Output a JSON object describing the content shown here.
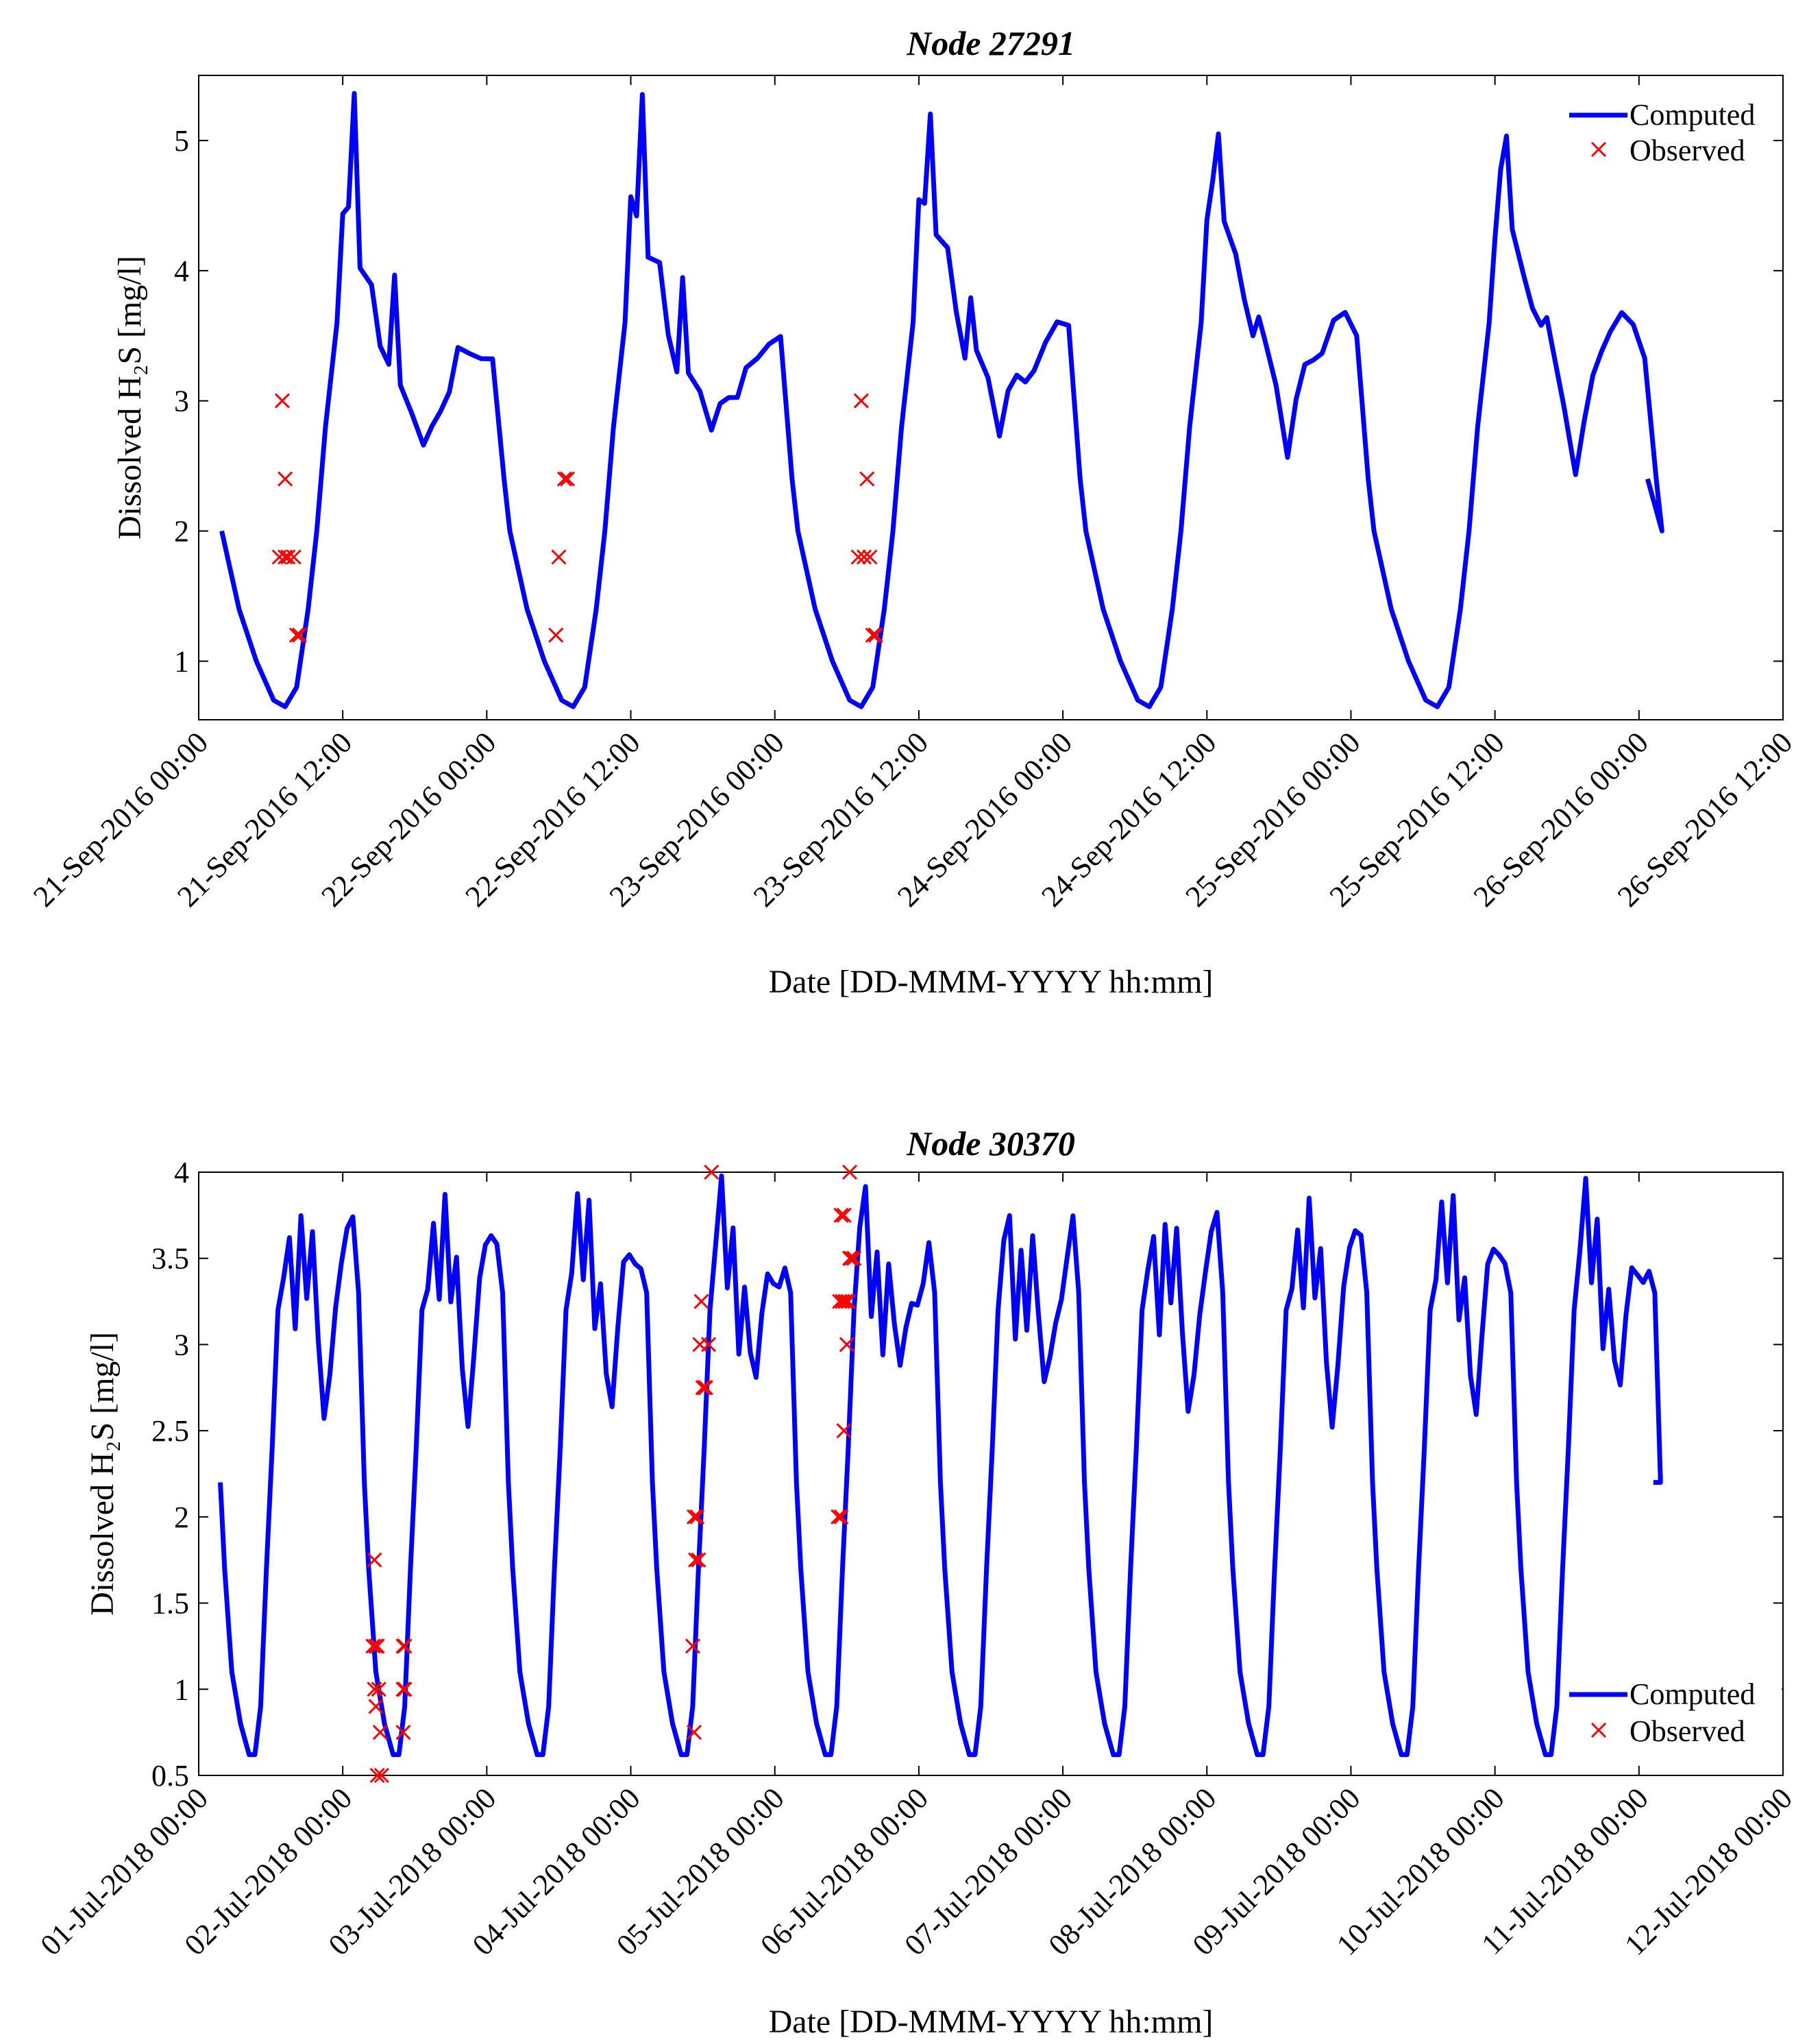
{
  "chart_data": [
    {
      "type": "line",
      "title": "Node 27291",
      "xlabel": "Date [DD-MMM-YYYY hh:mm]",
      "ylabel": "Dissolved H₂S [mg/l]",
      "ylim": [
        0.55,
        5.5
      ],
      "xlim_days": [
        0,
        5.5
      ],
      "yticks": [
        1,
        2,
        3,
        4,
        5
      ],
      "ytick_labels": [
        "1",
        "2",
        "3",
        "4",
        "5"
      ],
      "xtick_labels": [
        "21-Sep-2016 00:00",
        "21-Sep-2016 12:00",
        "22-Sep-2016 00:00",
        "22-Sep-2016 12:00",
        "23-Sep-2016 00:00",
        "23-Sep-2016 12:00",
        "24-Sep-2016 00:00",
        "24-Sep-2016 12:00",
        "25-Sep-2016 00:00",
        "25-Sep-2016 12:00",
        "26-Sep-2016 00:00",
        "26-Sep-2016 12:00"
      ],
      "legend_position": "top-right",
      "colors": {
        "computed": "#0000ff",
        "observed": "#ff0000"
      },
      "series": [
        {
          "name": "Computed",
          "style": "line",
          "period_days": 1,
          "days": 5,
          "profile_x_days": [
            0.0,
            0.02,
            0.06,
            0.12,
            0.18,
            0.22,
            0.26,
            0.3,
            0.33,
            0.36,
            0.4,
            0.42,
            0.44,
            0.46,
            0.48,
            0.52,
            0.55,
            0.58,
            0.6,
            0.62,
            0.66,
            0.7,
            0.73,
            0.76,
            0.79,
            0.82,
            0.86,
            0.9,
            0.94,
            0.98,
            1.0
          ],
          "profile_y": [
            2.0,
            1.8,
            1.4,
            1.0,
            0.7,
            0.65,
            0.8,
            1.4,
            2.0,
            2.8,
            3.6,
            4.4,
            4.6,
            5.2,
            4.2,
            4.0,
            3.6,
            3.4,
            3.8,
            3.3,
            3.0,
            2.6,
            2.9,
            3.1,
            3.2,
            3.4,
            3.5,
            3.5,
            3.4,
            2.4,
            2.0
          ],
          "end_day": 5.03,
          "end_value": 2.4
        },
        {
          "name": "Observed",
          "style": "marker-x",
          "x_days": [
            0.28,
            0.3,
            0.29,
            0.31,
            0.3,
            0.33,
            0.34,
            0.35,
            1.24,
            1.25,
            1.27,
            1.28,
            2.29,
            2.3,
            2.31,
            2.32,
            2.33,
            2.34,
            2.35
          ],
          "y": [
            1.8,
            1.8,
            3.0,
            1.8,
            2.4,
            1.8,
            1.2,
            1.2,
            1.2,
            1.8,
            2.4,
            2.4,
            1.8,
            3.0,
            1.8,
            2.4,
            1.8,
            1.2,
            1.2
          ]
        }
      ]
    },
    {
      "type": "line",
      "title": "Node 30370",
      "xlabel": "Date [DD-MMM-YYYY hh:mm]",
      "ylabel": "Dissolved H₂S [mg/l]",
      "ylim": [
        0.5,
        4.0
      ],
      "xlim_days": [
        0,
        11
      ],
      "yticks": [
        0.5,
        1,
        1.5,
        2,
        2.5,
        3,
        3.5,
        4
      ],
      "ytick_labels": [
        "0.5",
        "1",
        "1.5",
        "2",
        "2.5",
        "3",
        "3.5",
        "4"
      ],
      "xtick_labels": [
        "01-Jul-2018 00:00",
        "02-Jul-2018 00:00",
        "03-Jul-2018 00:00",
        "04-Jul-2018 00:00",
        "05-Jul-2018 00:00",
        "06-Jul-2018 00:00",
        "07-Jul-2018 00:00",
        "08-Jul-2018 00:00",
        "09-Jul-2018 00:00",
        "10-Jul-2018 00:00",
        "11-Jul-2018 00:00",
        "12-Jul-2018 00:00"
      ],
      "legend_position": "bottom-right",
      "colors": {
        "computed": "#0000ff",
        "observed": "#ff0000"
      },
      "series": [
        {
          "name": "Computed",
          "style": "line",
          "period_days": 1,
          "days": 10,
          "profile_x_days": [
            0.0,
            0.03,
            0.08,
            0.14,
            0.2,
            0.24,
            0.28,
            0.32,
            0.36,
            0.4,
            0.44,
            0.48,
            0.52,
            0.56,
            0.6,
            0.64,
            0.68,
            0.72,
            0.76,
            0.8,
            0.84,
            0.88,
            0.92,
            0.96,
            1.0
          ],
          "profile_y": [
            2.2,
            1.7,
            1.1,
            0.8,
            0.62,
            0.62,
            0.9,
            1.7,
            2.4,
            3.2,
            3.5,
            3.8,
            3.2,
            3.7,
            3.1,
            3.5,
            3.0,
            2.7,
            3.0,
            3.3,
            3.4,
            3.5,
            3.6,
            3.3,
            2.2
          ],
          "end_day": 10.1,
          "end_value": 2.2
        },
        {
          "name": "Observed",
          "style": "marker-x",
          "x_days": [
            1.22,
            1.21,
            1.23,
            1.24,
            1.22,
            1.25,
            1.23,
            1.26,
            1.24,
            1.27,
            1.42,
            1.43,
            1.42,
            1.43,
            1.42,
            3.43,
            3.45,
            3.47,
            3.44,
            3.46,
            3.48,
            3.49,
            3.5,
            3.51,
            3.52,
            3.54,
            3.56,
            3.44,
            4.44,
            4.46,
            4.48,
            4.5,
            4.45,
            4.47,
            4.49,
            4.51,
            4.52,
            4.53,
            4.55,
            4.46,
            4.48,
            4.52
          ],
          "y": [
            1.75,
            1.25,
            1.25,
            1.25,
            1.0,
            1.0,
            0.9,
            0.75,
            0.5,
            0.5,
            1.25,
            1.25,
            1.0,
            1.0,
            0.75,
            1.25,
            1.75,
            1.75,
            2.0,
            2.0,
            3.0,
            3.25,
            2.75,
            2.75,
            2.75,
            3.0,
            4.0,
            0.75,
            2.0,
            2.0,
            2.5,
            3.0,
            3.25,
            3.25,
            3.25,
            3.25,
            3.5,
            3.5,
            3.5,
            3.75,
            3.75,
            4.0
          ]
        }
      ]
    }
  ]
}
